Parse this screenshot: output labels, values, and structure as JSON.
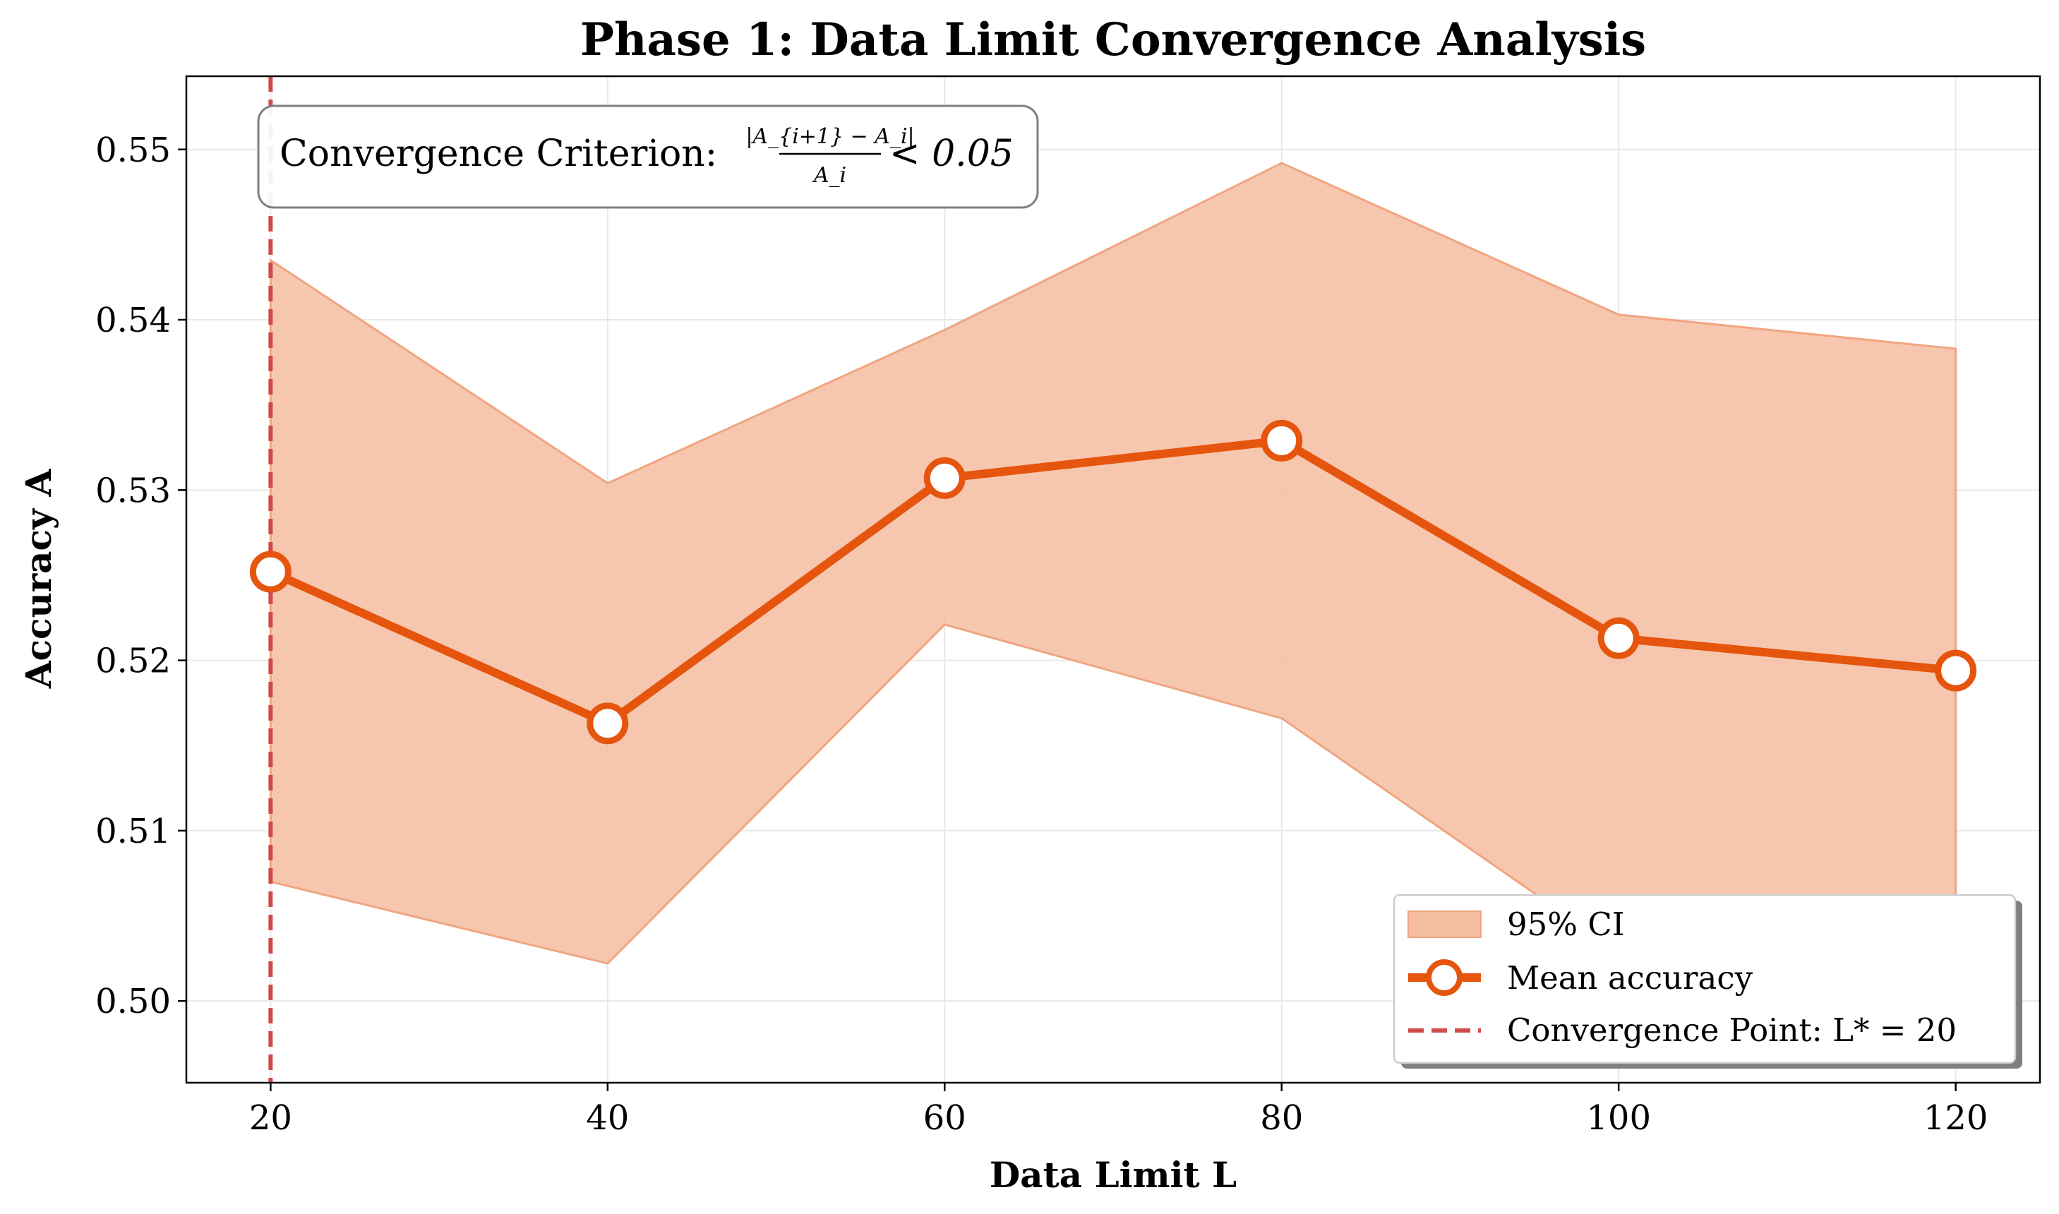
{
  "chart_data": {
    "type": "line",
    "title": "Phase 1: Data Limit Convergence Analysis",
    "xlabel": "Data Limit L",
    "ylabel": "Accuracy A",
    "x": [
      20,
      40,
      60,
      80,
      100,
      120
    ],
    "xticks": [
      "20",
      "40",
      "60",
      "80",
      "100",
      "120"
    ],
    "yticks": [
      "0.50",
      "0.51",
      "0.52",
      "0.53",
      "0.54",
      "0.55"
    ],
    "xlim": [
      15,
      125
    ],
    "ylim": [
      0.4952,
      0.5543
    ],
    "grid": true,
    "series": [
      {
        "name": "Mean accuracy",
        "values": [
          0.5252,
          0.5163,
          0.5307,
          0.5329,
          0.5213,
          0.5194
        ],
        "color": "#e6550d"
      }
    ],
    "ci_band": {
      "name": "95% CI",
      "lower": [
        0.507,
        0.5022,
        0.5221,
        0.5166,
        0.5029,
        0.5059
      ],
      "upper": [
        0.5435,
        0.5304,
        0.5394,
        0.5492,
        0.5403,
        0.5383
      ],
      "color": "#f5bda0"
    },
    "vline": {
      "name": "Convergence Point: L* = 20",
      "x": 20,
      "color": "#d04a4a"
    },
    "annotation": {
      "prefix": "Convergence Criterion: ",
      "numerator": "|A_{i+1} − A_i|",
      "denominator": "A_i",
      "suffix": "< 0.05"
    },
    "legend": {
      "position": "lower-right",
      "entries": [
        "95% CI",
        "Mean accuracy",
        "Convergence Point: L* = 20"
      ]
    }
  }
}
